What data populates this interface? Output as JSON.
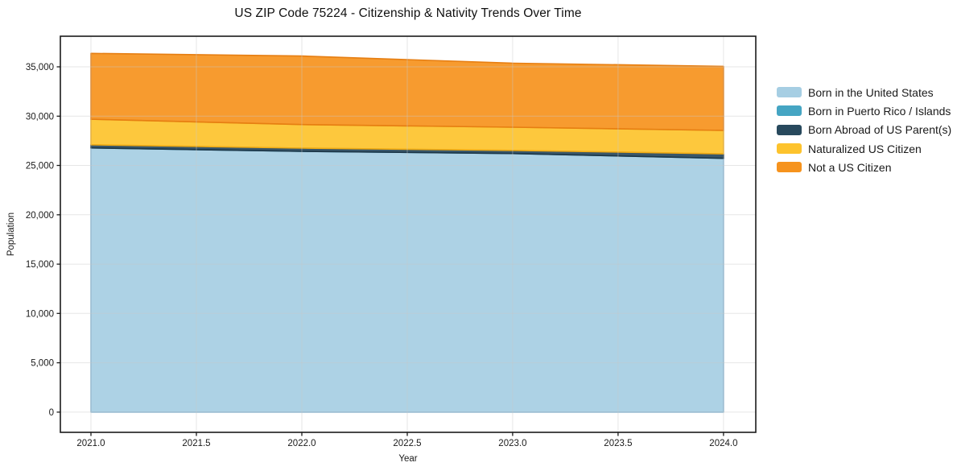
{
  "chart_data": {
    "type": "area",
    "stacked": true,
    "title": "US ZIP Code 75224 - Citizenship & Nativity Trends Over Time",
    "xlabel": "Year",
    "ylabel": "Population",
    "x": [
      2021,
      2022,
      2023,
      2024
    ],
    "series": [
      {
        "name": "Born in the United States",
        "values": [
          26780,
          26430,
          26210,
          25720
        ],
        "fill": "#a6cee3",
        "edge": "#8ab9d5"
      },
      {
        "name": "Born in Puerto Rico / Islands",
        "values": [
          0,
          0,
          0,
          0
        ],
        "fill": "#45a5c3",
        "edge": "#3690af"
      },
      {
        "name": "Born Abroad of US Parent(s)",
        "values": [
          320,
          330,
          320,
          460
        ],
        "fill": "#28495d",
        "edge": "#1d3748"
      },
      {
        "name": "Naturalized US Citizen",
        "values": [
          2590,
          2390,
          2350,
          2370
        ],
        "fill": "#fdc32d",
        "edge": "#f0ab14"
      },
      {
        "name": "Not a US Citizen",
        "values": [
          6670,
          6940,
          6490,
          6500
        ],
        "fill": "#f6931d",
        "edge": "#e67e12"
      }
    ],
    "totals": [
      36360,
      36090,
      35370,
      35050
    ],
    "xlim": [
      2020.855,
      2024.153
    ],
    "ylim": [
      -2050,
      38100
    ],
    "xticks": {
      "values": [
        2021,
        2021.5,
        2022,
        2022.5,
        2023,
        2023.5,
        2024
      ],
      "labels": [
        "2021.0",
        "2021.5",
        "2022.0",
        "2022.5",
        "2023.0",
        "2023.5",
        "2024.0"
      ]
    },
    "yticks": {
      "values": [
        0,
        5000,
        10000,
        15000,
        20000,
        25000,
        30000,
        35000
      ],
      "labels": [
        "0",
        "5,000",
        "10,000",
        "15,000",
        "20,000",
        "25,000",
        "30,000",
        "35,000"
      ]
    },
    "grid": true,
    "legend_position": "right-outside",
    "colors": {
      "spine": "#1a1a1a",
      "grid": "#c8c8c8",
      "tick_text": "#1a1a1a",
      "background": "#ffffff"
    }
  }
}
